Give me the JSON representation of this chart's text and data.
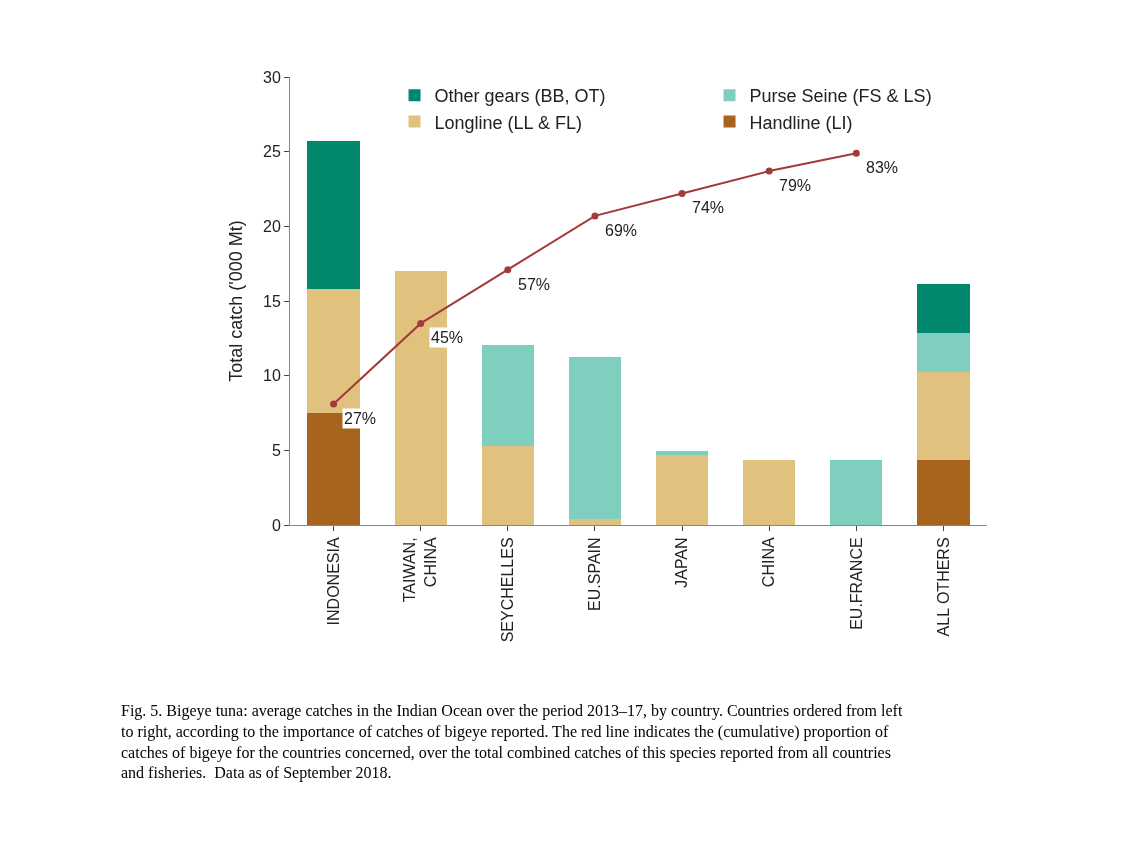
{
  "chart_data": {
    "type": "bar",
    "stacked": true,
    "ylabel": "Total catch ('000 Mt)",
    "categories": [
      "INDONESIA",
      "TAIWAN, CHINA",
      "SEYCHELLES",
      "EU.SPAIN",
      "JAPAN",
      "CHINA",
      "EU.FRANCE",
      "ALL OTHERS"
    ],
    "series": [
      {
        "name": "Handline (LI)",
        "color": "#a8631e",
        "values": [
          7.5,
          0,
          0,
          0,
          0,
          0,
          0,
          4.35
        ]
      },
      {
        "name": "Longline (LL & FL)",
        "color": "#e0c27e",
        "values": [
          8.3,
          17.0,
          5.3,
          0.4,
          4.7,
          4.35,
          0,
          5.9
        ]
      },
      {
        "name": "Purse Seine (FS & LS)",
        "color": "#7fcfc0",
        "values": [
          0,
          0,
          6.75,
          10.85,
          0.25,
          0,
          4.35,
          2.6
        ]
      },
      {
        "name": "Other gears (BB, OT)",
        "color": "#00876c",
        "values": [
          9.9,
          0,
          0,
          0,
          0,
          0,
          0,
          3.3
        ]
      },
      {
        "type": "line",
        "axis": "y2",
        "color": "#a33a3a",
        "marker": "circle",
        "values": [
          27,
          45,
          57,
          69,
          74,
          79,
          83,
          null
        ],
        "value_labels": [
          "27%",
          "45%",
          "57%",
          "69%",
          "74%",
          "79%",
          "83%",
          null
        ]
      }
    ],
    "ylim": [
      0,
      30
    ],
    "yticks": [
      0,
      5,
      10,
      15,
      20,
      25,
      30
    ],
    "y2lim": [
      0,
      100
    ],
    "legend": "top",
    "annotations": [
      "Fig. 5. Bigeye tuna: average catches in the Indian Ocean over the period 2013–17, by country. Countries ordered from left to right, according to the importance of catches of bigeye reported. The red line indicates the (cumulative) proportion of catches of bigeye for the countries concerned, over the total combined catches of this species reported from all countries and fisheries.  Data as of September 2018."
    ]
  }
}
